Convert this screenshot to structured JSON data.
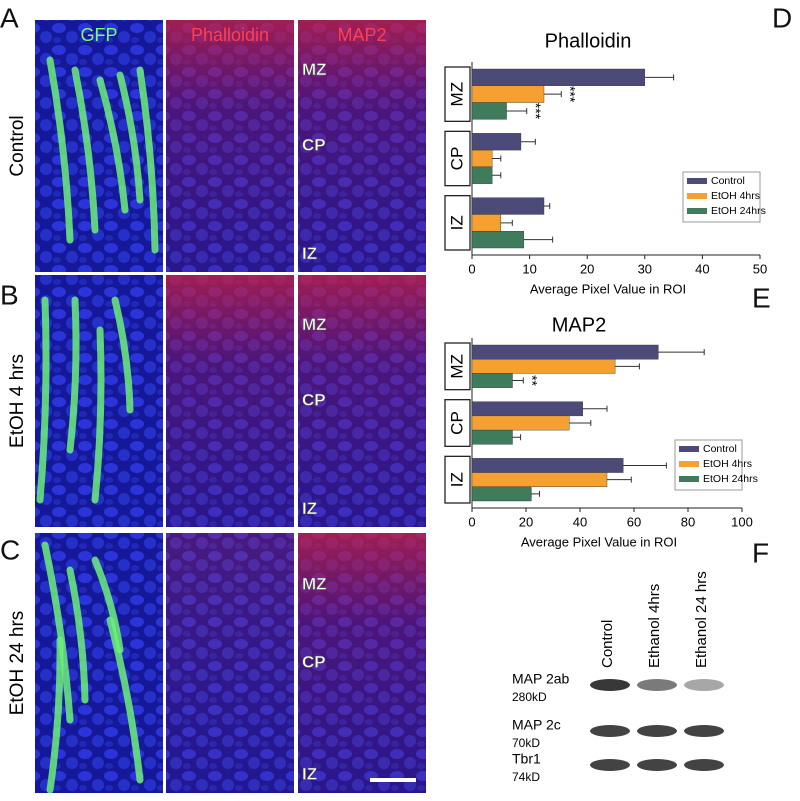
{
  "figure": {
    "panel_letters": [
      "A",
      "B",
      "C",
      "D",
      "E",
      "F"
    ],
    "columns": [
      "GFP",
      "Phalloidin",
      "MAP2"
    ],
    "rows": [
      "Control",
      "EtOH 4 hrs",
      "EtOH 24 hrs"
    ],
    "regions": [
      "MZ",
      "CP",
      "IZ"
    ],
    "blot": {
      "lanes": [
        "Control",
        "Ethanol 4hrs",
        "Ethanol 24 hrs"
      ],
      "bands": [
        {
          "name": "MAP 2ab",
          "size": "280kD"
        },
        {
          "name": "MAP 2c",
          "size": "70kD"
        },
        {
          "name": "Tbr1",
          "size": "74kD"
        }
      ]
    }
  },
  "chart_data": [
    {
      "type": "bar",
      "orientation": "horizontal",
      "title": "Phalloidin",
      "xlabel": "Average Pixel Value in ROI",
      "categories": [
        "MZ",
        "CP",
        "IZ"
      ],
      "series": [
        {
          "name": "Control",
          "color": "#4c4a78",
          "values": [
            30,
            8.5,
            12.5
          ],
          "errors": [
            5,
            2.5,
            1
          ]
        },
        {
          "name": "EtOH 4hrs",
          "color": "#f7a032",
          "values": [
            12.5,
            3.5,
            5
          ],
          "errors": [
            3,
            1.5,
            2
          ]
        },
        {
          "name": "EtOH 24hrs",
          "color": "#3f7c5c",
          "values": [
            6,
            3.5,
            9
          ],
          "errors": [
            3.5,
            1.5,
            5
          ]
        }
      ],
      "xlim": [
        0,
        50
      ],
      "xticks": [
        0,
        10,
        20,
        30,
        40,
        50
      ],
      "annotations": [
        "***",
        "***"
      ],
      "legend": "lower right"
    },
    {
      "type": "bar",
      "orientation": "horizontal",
      "title": "MAP2",
      "xlabel": "Average Pixel Value in ROI",
      "categories": [
        "MZ",
        "CP",
        "IZ"
      ],
      "series": [
        {
          "name": "Control",
          "color": "#4c4a78",
          "values": [
            69,
            41,
            56
          ],
          "errors": [
            17,
            9,
            16
          ]
        },
        {
          "name": "EtOH 4hrs",
          "color": "#f7a032",
          "values": [
            53,
            36,
            50
          ],
          "errors": [
            9,
            8,
            9
          ]
        },
        {
          "name": "EtOH 24hrs",
          "color": "#3f7c5c",
          "values": [
            15,
            15,
            22
          ],
          "errors": [
            4,
            3,
            3
          ]
        }
      ],
      "xlim": [
        0,
        100
      ],
      "xticks": [
        0,
        20,
        40,
        60,
        80,
        100
      ],
      "annotations": [
        "**"
      ],
      "legend": "lower right"
    }
  ]
}
